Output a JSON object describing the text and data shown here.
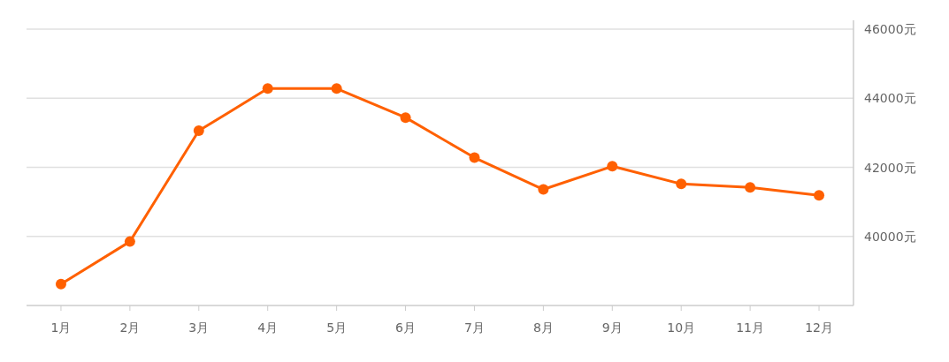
{
  "chart_data": {
    "type": "line",
    "categories": [
      "1月",
      "2月",
      "3月",
      "4月",
      "5月",
      "6月",
      "7月",
      "8月",
      "9月",
      "10月",
      "11月",
      "12月"
    ],
    "series": [
      {
        "color": "#ff6000",
        "values": [
          38620,
          39850,
          43060,
          44280,
          44280,
          43440,
          42280,
          41360,
          42030,
          41520,
          41420,
          41190
        ]
      }
    ],
    "ylim": [
      38000,
      46000
    ],
    "yticks": [
      {
        "value": 40000,
        "label": "40000元"
      },
      {
        "value": 42000,
        "label": "42000元"
      },
      {
        "value": 44000,
        "label": "44000元"
      },
      {
        "value": 46000,
        "label": "46000元"
      }
    ],
    "grid": "y",
    "marker": "circle",
    "line_style": "solid"
  }
}
